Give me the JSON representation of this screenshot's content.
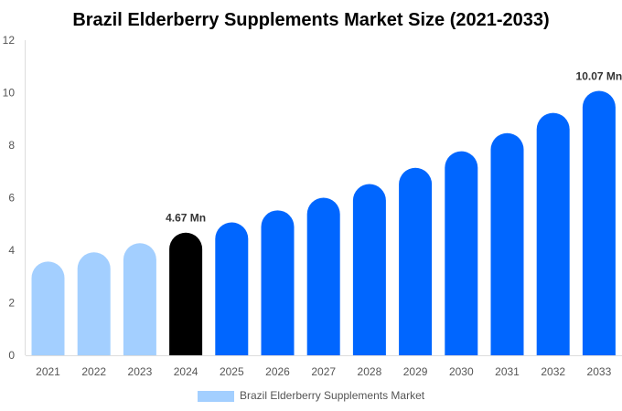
{
  "chart_data": {
    "type": "bar",
    "title": "Brazil Elderberry Supplements Market Size (2021-2033)",
    "xlabel": "",
    "ylabel": "",
    "ylim": [
      0,
      12
    ],
    "yticks": [
      0,
      2,
      4,
      6,
      8,
      10,
      12
    ],
    "grid": false,
    "legend_placement": "bottom",
    "categories": [
      "2021",
      "2022",
      "2023",
      "2024",
      "2025",
      "2026",
      "2027",
      "2028",
      "2029",
      "2030",
      "2031",
      "2032",
      "2033"
    ],
    "series": [
      {
        "name": "Brazil Elderberry Supplements Market",
        "values": [
          3.57,
          3.92,
          4.27,
          4.67,
          5.06,
          5.52,
          6.0,
          6.52,
          7.14,
          7.77,
          8.46,
          9.23,
          10.07
        ]
      }
    ],
    "data_labels": [
      {
        "category": "2024",
        "text": "4.67 Mn"
      },
      {
        "category": "2033",
        "text": "10.07 Mn"
      }
    ],
    "colors": {
      "historical": "#a3cfff",
      "base_year": "#000000",
      "forecast": "#0066ff",
      "legend": "#a3cfff"
    }
  }
}
